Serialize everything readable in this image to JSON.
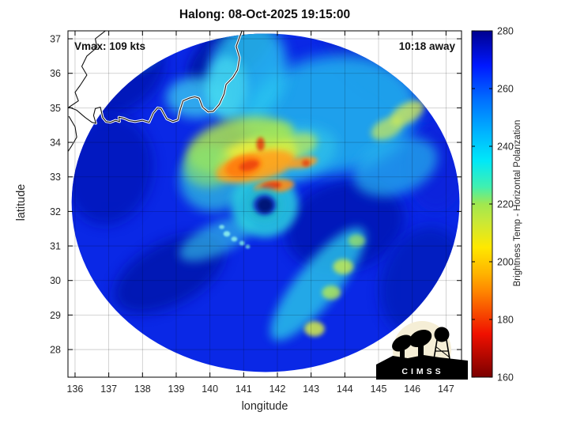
{
  "chart_data": {
    "type": "heatmap",
    "title": "Halong: 08-Oct-2025 19:15:00",
    "annotations": {
      "vmax": "Vmax: 109 kts",
      "eta": "10:18 away"
    },
    "xlabel": "longitude",
    "ylabel": "latitude",
    "xlim": [
      135.79,
      147.46
    ],
    "ylim": [
      27.2,
      37.23
    ],
    "xticks": [
      136,
      137,
      138,
      139,
      140,
      141,
      142,
      143,
      144,
      145,
      146,
      147
    ],
    "yticks": [
      28,
      29,
      30,
      31,
      32,
      33,
      34,
      35,
      36,
      37
    ],
    "grid": true,
    "colorbar": {
      "label": "Brightness Temp - Horizontal Polarization",
      "min": 160,
      "max": 280,
      "ticks": [
        160,
        180,
        200,
        220,
        240,
        260,
        280
      ],
      "colormap": "jet-reversed",
      "stops_top_to_bottom": [
        [
          0,
          "#00008f"
        ],
        [
          0.1,
          "#0018ff"
        ],
        [
          0.2,
          "#0070ff"
        ],
        [
          0.3,
          "#00b8ff"
        ],
        [
          0.375,
          "#00e8f8"
        ],
        [
          0.45,
          "#40f0b0"
        ],
        [
          0.5,
          "#a0e850"
        ],
        [
          0.55,
          "#c8e838"
        ],
        [
          0.625,
          "#ffe800"
        ],
        [
          0.7,
          "#ffb400"
        ],
        [
          0.75,
          "#ff8800"
        ],
        [
          0.875,
          "#f01000"
        ],
        [
          1,
          "#7a0000"
        ]
      ]
    },
    "storm": {
      "name": "Halong",
      "vmax_kts": 109,
      "eye_lon": 141.63,
      "eye_lat": 32.18
    },
    "swath": {
      "center_lon": 141.65,
      "center_lat": 32.25,
      "radius_lon_deg": 5.75,
      "radius_lat_deg": 4.9,
      "base_fill": "#0a28e6"
    },
    "feature_format": "[lon, lat, rx_deg, ry_deg, rot_deg, fill, opacity, blur_px]",
    "features": [
      [
        137.3,
        35.9,
        1.5,
        1.0,
        -35,
        "#0417b2",
        0.85,
        8
      ],
      [
        137.0,
        33.2,
        1.3,
        1.6,
        10,
        "#0419b8",
        0.8,
        8
      ],
      [
        138.8,
        30.2,
        1.8,
        0.9,
        -28,
        "#0316ac",
        0.85,
        8
      ],
      [
        140.6,
        36.6,
        1.5,
        0.75,
        -38,
        "#0314a6",
        0.9,
        7
      ],
      [
        140.75,
        34.6,
        2.5,
        0.35,
        74,
        "#0a1cc8",
        0.7,
        5
      ],
      [
        144.0,
        31.6,
        1.8,
        1.3,
        -15,
        "#0418b4",
        0.85,
        8
      ],
      [
        146.3,
        30.0,
        1.2,
        1.6,
        20,
        "#051ab8",
        0.8,
        8
      ],
      [
        146.7,
        33.3,
        0.9,
        1.3,
        0,
        "#0a24d8",
        0.7,
        8
      ],
      [
        144.6,
        36.2,
        1.6,
        0.5,
        40,
        "#0a22d0",
        0.6,
        6
      ],
      [
        145.6,
        35.3,
        1.2,
        0.35,
        35,
        "#0c28dc",
        0.6,
        5
      ],
      [
        143.6,
        34.8,
        2.6,
        1.7,
        -10,
        "#23b6ee",
        0.85,
        9
      ],
      [
        141.1,
        36.0,
        1.15,
        1.5,
        15,
        "#2cc8f0",
        0.8,
        8
      ],
      [
        139.6,
        35.3,
        0.9,
        0.6,
        0,
        "#3ed2f0",
        0.75,
        7
      ],
      [
        140.5,
        35.6,
        0.6,
        0.9,
        0,
        "#48dcf0",
        0.7,
        6
      ],
      [
        137.9,
        36.45,
        0.55,
        0.35,
        -20,
        "#28b0d8",
        0.6,
        6
      ],
      [
        142.2,
        33.6,
        1.6,
        0.8,
        -15,
        "#2ec0e8",
        0.8,
        7
      ],
      [
        140.1,
        32.9,
        1.0,
        0.9,
        0,
        "#30c8e0",
        0.7,
        7
      ],
      [
        145.5,
        33.3,
        1.3,
        0.8,
        -20,
        "#28b8ec",
        0.7,
        7
      ],
      [
        143.2,
        29.9,
        2.1,
        0.6,
        -51,
        "#2cc8e8",
        0.8,
        6
      ],
      [
        140.2,
        31.2,
        1.2,
        0.45,
        -25,
        "#38d0e8",
        0.6,
        6
      ],
      [
        141.62,
        32.2,
        1.0,
        0.95,
        0,
        "#2ad0de",
        0.85,
        5
      ],
      [
        140.9,
        33.9,
        1.6,
        0.8,
        -12,
        "#aee84e",
        0.85,
        6
      ],
      [
        141.4,
        33.6,
        1.2,
        0.5,
        -10,
        "#f2ee3a",
        0.85,
        5
      ],
      [
        139.95,
        33.3,
        0.75,
        0.6,
        0,
        "#86e070",
        0.7,
        6
      ],
      [
        142.6,
        33.9,
        0.6,
        0.35,
        -20,
        "#c8ec48",
        0.7,
        5
      ],
      [
        141.9,
        34.2,
        0.6,
        0.3,
        -25,
        "#9ee45c",
        0.6,
        5
      ],
      [
        145.85,
        34.85,
        0.55,
        0.28,
        -30,
        "#dcec50",
        0.75,
        4
      ],
      [
        145.25,
        34.4,
        0.5,
        0.28,
        -25,
        "#d0ec54",
        0.7,
        4
      ],
      [
        143.1,
        28.6,
        0.3,
        0.22,
        0,
        "#d8f046",
        0.85,
        3
      ],
      [
        143.6,
        29.65,
        0.28,
        0.2,
        0,
        "#b8ec50",
        0.8,
        3
      ],
      [
        143.95,
        30.4,
        0.3,
        0.22,
        0,
        "#ccee4a",
        0.8,
        3
      ],
      [
        144.35,
        31.15,
        0.25,
        0.18,
        0,
        "#a8e858",
        0.7,
        3
      ],
      [
        141.35,
        33.3,
        1.2,
        0.42,
        -12,
        "#ffa01e",
        0.9,
        4
      ],
      [
        141.0,
        33.3,
        0.55,
        0.3,
        -15,
        "#ff7c0c",
        0.9,
        3
      ],
      [
        141.15,
        33.33,
        0.3,
        0.14,
        -15,
        "#ee4410",
        0.9,
        2
      ],
      [
        141.5,
        33.95,
        0.12,
        0.2,
        0,
        "#e6380e",
        0.85,
        2
      ],
      [
        141.9,
        32.72,
        0.6,
        0.2,
        -8,
        "#ff8c16",
        0.9,
        3
      ],
      [
        141.82,
        32.74,
        0.3,
        0.11,
        -8,
        "#ea3c0e",
        0.9,
        2
      ],
      [
        142.75,
        33.42,
        0.45,
        0.16,
        -10,
        "#ff9c1e",
        0.85,
        3
      ],
      [
        142.85,
        33.4,
        0.12,
        0.1,
        0,
        "#e64210",
        0.85,
        2
      ],
      [
        141.62,
        32.2,
        0.55,
        0.5,
        0,
        "#20b8d0",
        0.9,
        4
      ],
      [
        141.62,
        32.19,
        0.34,
        0.3,
        0,
        "#0a30c0",
        0.95,
        3
      ],
      [
        141.63,
        32.18,
        0.22,
        0.2,
        0,
        "#041478",
        1,
        2
      ],
      [
        140.5,
        31.35,
        0.1,
        0.08,
        0,
        "#8ef0ee",
        0.9,
        1
      ],
      [
        140.72,
        31.2,
        0.09,
        0.07,
        0,
        "#8ef0ee",
        0.85,
        1
      ],
      [
        140.95,
        31.08,
        0.08,
        0.07,
        0,
        "#7eeae8",
        0.8,
        1
      ],
      [
        140.35,
        31.55,
        0.08,
        0.06,
        0,
        "#8ef0ee",
        0.8,
        1
      ],
      [
        141.12,
        30.98,
        0.07,
        0.06,
        0,
        "#7eeae8",
        0.75,
        1
      ]
    ],
    "coastlines": {
      "main": [
        [
          135.82,
          35.02
        ],
        [
          136.05,
          34.93
        ],
        [
          136.3,
          34.72
        ],
        [
          136.5,
          34.58
        ],
        [
          136.62,
          34.55
        ],
        [
          136.55,
          34.78
        ],
        [
          136.6,
          34.98
        ],
        [
          136.75,
          35.02
        ],
        [
          136.82,
          34.72
        ],
        [
          136.92,
          34.6
        ],
        [
          137.05,
          34.58
        ],
        [
          137.2,
          34.64
        ],
        [
          137.32,
          34.6
        ],
        [
          137.3,
          34.73
        ],
        [
          137.45,
          34.7
        ],
        [
          137.6,
          34.63
        ],
        [
          137.78,
          34.6
        ],
        [
          138.0,
          34.64
        ],
        [
          138.2,
          34.58
        ],
        [
          138.32,
          34.85
        ],
        [
          138.45,
          35.0
        ],
        [
          138.55,
          34.98
        ],
        [
          138.72,
          34.68
        ],
        [
          138.9,
          34.6
        ],
        [
          139.05,
          34.65
        ],
        [
          139.12,
          34.95
        ],
        [
          139.2,
          35.2
        ],
        [
          139.38,
          35.28
        ],
        [
          139.55,
          35.32
        ],
        [
          139.68,
          35.28
        ],
        [
          139.78,
          35.02
        ],
        [
          139.95,
          34.88
        ],
        [
          140.1,
          34.9
        ],
        [
          140.28,
          35.1
        ],
        [
          140.42,
          35.4
        ],
        [
          140.48,
          35.68
        ],
        [
          140.68,
          35.88
        ],
        [
          140.82,
          36.1
        ],
        [
          140.88,
          36.45
        ],
        [
          140.78,
          36.78
        ],
        [
          140.88,
          37.05
        ],
        [
          140.95,
          37.23
        ]
      ],
      "west1": [
        [
          136.9,
          37.23
        ],
        [
          136.6,
          37.0
        ],
        [
          136.65,
          36.75
        ],
        [
          136.35,
          36.5
        ],
        [
          136.2,
          36.2
        ],
        [
          136.35,
          35.95
        ],
        [
          136.15,
          35.65
        ],
        [
          136.0,
          35.45
        ],
        [
          136.1,
          35.2
        ],
        [
          135.82,
          35.02
        ]
      ],
      "kii": [
        [
          135.82,
          34.75
        ],
        [
          136.0,
          34.45
        ],
        [
          136.05,
          34.15
        ],
        [
          135.9,
          33.9
        ],
        [
          135.8,
          33.75
        ]
      ]
    },
    "grid_color": "rgba(0,0,0,0.22)"
  },
  "logo": {
    "text": "CIMSS"
  }
}
